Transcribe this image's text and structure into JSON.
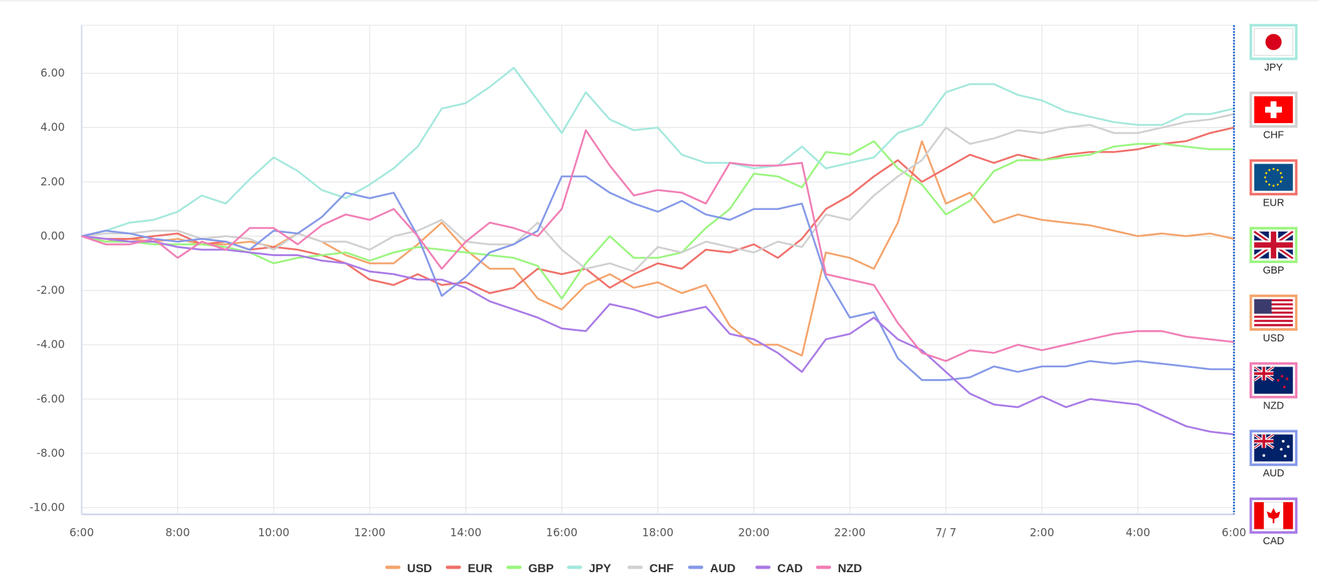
{
  "chart_data": {
    "type": "line",
    "title": "",
    "xlabel": "",
    "ylabel": "",
    "ylim": [
      -10.25,
      7.8
    ],
    "yticks": [
      "6.00",
      "4.00",
      "2.00",
      "0.00",
      "-2.00",
      "-4.00",
      "-6.00",
      "-8.00",
      "-10.00"
    ],
    "ytick_values": [
      6,
      4,
      2,
      0,
      -2,
      -4,
      -6,
      -8,
      -10
    ],
    "xticks": [
      "6:00",
      "8:00",
      "10:00",
      "12:00",
      "14:00",
      "16:00",
      "18:00",
      "20:00",
      "22:00",
      "7/ 7",
      "2:00",
      "4:00",
      "6:00"
    ],
    "x_hours": [
      0,
      0.5,
      1,
      1.5,
      2,
      2.5,
      3,
      3.5,
      4,
      4.5,
      5,
      5.5,
      6,
      6.5,
      7,
      7.5,
      8,
      8.5,
      9,
      9.5,
      10,
      10.5,
      11,
      11.5,
      12,
      12.5,
      13,
      13.5,
      14,
      14.5,
      15,
      15.5,
      16,
      16.5,
      17,
      17.5,
      18,
      18.5,
      19,
      19.5,
      20,
      20.5,
      21,
      21.5,
      22,
      22.5,
      23,
      23.5,
      24
    ],
    "x_unit": "hours since 6:00",
    "grid": true,
    "legend_position": "bottom-center",
    "series": [
      {
        "name": "USD",
        "color": "#f4a46c",
        "values": [
          0,
          -0.2,
          -0.1,
          -0.2,
          -0.1,
          -0.3,
          -0.3,
          -0.2,
          -0.4,
          0.1,
          -0.2,
          -0.7,
          -1.0,
          -1.0,
          -0.3,
          0.5,
          -0.5,
          -1.2,
          -1.2,
          -2.3,
          -2.7,
          -1.8,
          -1.4,
          -1.9,
          -1.7,
          -2.1,
          -1.8,
          -3.3,
          -4.0,
          -4.0,
          -4.4,
          -0.6,
          -0.8,
          -1.2,
          0.5,
          3.5,
          1.2,
          1.6,
          0.5,
          0.8,
          0.6,
          0.5,
          0.4,
          0.2,
          0,
          0.1,
          0,
          0.1,
          -0.1
        ]
      },
      {
        "name": "EUR",
        "color": "#f0706a",
        "values": [
          0,
          -0.1,
          -0.1,
          0,
          0.1,
          -0.3,
          -0.2,
          -0.5,
          -0.4,
          -0.5,
          -0.7,
          -1.0,
          -1.6,
          -1.8,
          -1.4,
          -1.8,
          -1.7,
          -2.1,
          -1.9,
          -1.2,
          -1.4,
          -1.2,
          -1.9,
          -1.4,
          -1.0,
          -1.2,
          -0.5,
          -0.6,
          -0.3,
          -0.8,
          -0.1,
          1.0,
          1.5,
          2.2,
          2.8,
          2.0,
          2.5,
          3.0,
          2.7,
          3.0,
          2.8,
          3.0,
          3.1,
          3.1,
          3.2,
          3.4,
          3.5,
          3.8,
          4.0
        ]
      },
      {
        "name": "GBP",
        "color": "#9bf57f",
        "values": [
          0,
          -0.2,
          -0.2,
          -0.3,
          -0.3,
          -0.3,
          -0.4,
          -0.6,
          -1.0,
          -0.8,
          -0.7,
          -0.6,
          -0.9,
          -0.6,
          -0.4,
          -0.5,
          -0.6,
          -0.7,
          -0.8,
          -1.1,
          -2.3,
          -1.0,
          0,
          -0.8,
          -0.8,
          -0.6,
          0.3,
          1.0,
          2.3,
          2.2,
          1.8,
          3.1,
          3.0,
          3.5,
          2.5,
          1.9,
          0.8,
          1.3,
          2.4,
          2.8,
          2.8,
          2.9,
          3.0,
          3.3,
          3.4,
          3.4,
          3.3,
          3.2,
          3.2
        ]
      },
      {
        "name": "JPY",
        "color": "#a4e8dd",
        "values": [
          0,
          0.2,
          0.5,
          0.6,
          0.9,
          1.5,
          1.2,
          2.1,
          2.9,
          2.4,
          1.7,
          1.4,
          1.9,
          2.5,
          3.3,
          4.7,
          4.9,
          5.5,
          6.2,
          5.0,
          3.8,
          5.3,
          4.3,
          3.9,
          4.0,
          3.0,
          2.7,
          2.7,
          2.5,
          2.6,
          3.3,
          2.5,
          2.7,
          2.9,
          3.8,
          4.1,
          5.3,
          5.6,
          5.6,
          5.2,
          5.0,
          4.6,
          4.4,
          4.2,
          4.1,
          4.1,
          4.5,
          4.5,
          4.7
        ]
      },
      {
        "name": "CHF",
        "color": "#d0d0d0",
        "values": [
          0,
          0.1,
          0.1,
          0.2,
          0.2,
          -0.1,
          0,
          -0.1,
          -0.5,
          0.1,
          -0.2,
          -0.2,
          -0.5,
          0,
          0.2,
          0.6,
          -0.2,
          -0.3,
          -0.3,
          0.5,
          -0.5,
          -1.2,
          -1.0,
          -1.3,
          -0.4,
          -0.6,
          -0.2,
          -0.4,
          -0.6,
          -0.2,
          -0.4,
          0.8,
          0.6,
          1.5,
          2.2,
          2.8,
          4.0,
          3.4,
          3.6,
          3.9,
          3.8,
          4.0,
          4.1,
          3.8,
          3.8,
          4.0,
          4.2,
          4.3,
          4.5
        ]
      },
      {
        "name": "AUD",
        "color": "#8599e8",
        "values": [
          0,
          0.2,
          0.1,
          -0.1,
          -0.2,
          -0.1,
          -0.2,
          -0.5,
          0.2,
          0.1,
          0.7,
          1.6,
          1.4,
          1.6,
          0,
          -2.2,
          -1.5,
          -0.6,
          -0.3,
          0.2,
          2.2,
          2.2,
          1.6,
          1.2,
          0.9,
          1.3,
          0.8,
          0.6,
          1.0,
          1.0,
          1.2,
          -1.5,
          -3.0,
          -2.8,
          -4.5,
          -5.3,
          -5.3,
          -5.2,
          -4.8,
          -5.0,
          -4.8,
          -4.8,
          -4.6,
          -4.7,
          -4.6,
          -4.7,
          -4.8,
          -4.9,
          -4.9
        ]
      },
      {
        "name": "CAD",
        "color": "#a97ae6",
        "values": [
          0,
          -0.1,
          -0.2,
          -0.2,
          -0.4,
          -0.5,
          -0.5,
          -0.6,
          -0.7,
          -0.7,
          -0.9,
          -1.0,
          -1.3,
          -1.4,
          -1.6,
          -1.6,
          -1.9,
          -2.4,
          -2.7,
          -3.0,
          -3.4,
          -3.5,
          -2.5,
          -2.7,
          -3.0,
          -2.8,
          -2.6,
          -3.6,
          -3.8,
          -4.3,
          -5.0,
          -3.8,
          -3.6,
          -3.0,
          -3.8,
          -4.2,
          -5.0,
          -5.8,
          -6.2,
          -6.3,
          -5.9,
          -6.3,
          -6.0,
          -6.1,
          -6.2,
          -6.6,
          -7.0,
          -7.2,
          -7.3
        ]
      },
      {
        "name": "NZD",
        "color": "#f17eb5",
        "values": [
          0,
          -0.3,
          -0.3,
          -0.1,
          -0.8,
          -0.2,
          -0.5,
          0.3,
          0.3,
          -0.3,
          0.4,
          0.8,
          0.6,
          1.0,
          0,
          -1.2,
          -0.2,
          0.5,
          0.3,
          0,
          1.0,
          3.9,
          2.6,
          1.5,
          1.7,
          1.6,
          1.2,
          2.7,
          2.6,
          2.6,
          2.7,
          -1.4,
          -1.6,
          -1.8,
          -3.2,
          -4.3,
          -4.6,
          -4.2,
          -4.3,
          -4.0,
          -4.2,
          -4.0,
          -3.8,
          -3.6,
          -3.5,
          -3.5,
          -3.7,
          -3.8,
          -3.9
        ]
      }
    ]
  },
  "ranking_panel": {
    "items": [
      {
        "code": "JPY",
        "flag": "japan-flag",
        "color": "#a4e8dd"
      },
      {
        "code": "CHF",
        "flag": "switzerland-flag",
        "color": "#d0d0d0"
      },
      {
        "code": "EUR",
        "flag": "eu-flag",
        "color": "#f0706a"
      },
      {
        "code": "GBP",
        "flag": "uk-flag",
        "color": "#9bf57f"
      },
      {
        "code": "USD",
        "flag": "us-flag",
        "color": "#f4a46c"
      },
      {
        "code": "NZD",
        "flag": "new-zealand-flag",
        "color": "#f17eb5"
      },
      {
        "code": "AUD",
        "flag": "australia-flag",
        "color": "#8599e8"
      },
      {
        "code": "CAD",
        "flag": "canada-flag",
        "color": "#a97ae6"
      }
    ]
  },
  "legend": {
    "items": [
      "USD",
      "EUR",
      "GBP",
      "JPY",
      "CHF",
      "AUD",
      "CAD",
      "NZD"
    ]
  }
}
